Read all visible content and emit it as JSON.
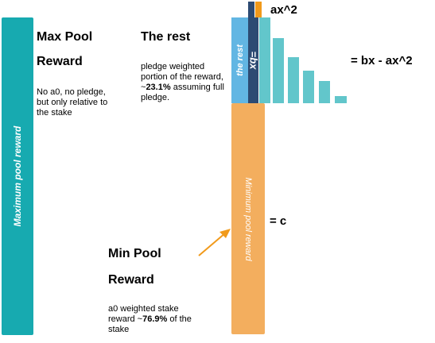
{
  "max_bar": {
    "label": "Maximum pool reward"
  },
  "max_pool": {
    "title_line1": "Max Pool",
    "title_line2": "Reward",
    "desc": "No a0, no pledge, but only relative to the stake"
  },
  "rest": {
    "title": "The rest",
    "desc_before": "pledge weighted portion of the reward, ~",
    "desc_pct": "23.1%",
    "desc_after": " assuming full pledge.",
    "bar_label": "the rest"
  },
  "bx_bar": {
    "label": "=bx"
  },
  "min_bar": {
    "label": "Minimum pool reward"
  },
  "min_pool": {
    "title_line1": "Min Pool",
    "title_line2": "Reward",
    "desc_before": "a0 weighted stake reward ~",
    "desc_pct": "76.9%",
    "desc_after": " of the stake"
  },
  "equations": {
    "ax2": "ax^2",
    "bx_minus_ax2": "= bx - ax^2",
    "c": "= c"
  },
  "colors": {
    "teal": "#17aab0",
    "orange": "#f3ae5e",
    "light_blue": "#62b6e3",
    "navy": "#2d4b73",
    "steps": "#62c6cb",
    "arrow": "#f19a1b"
  }
}
